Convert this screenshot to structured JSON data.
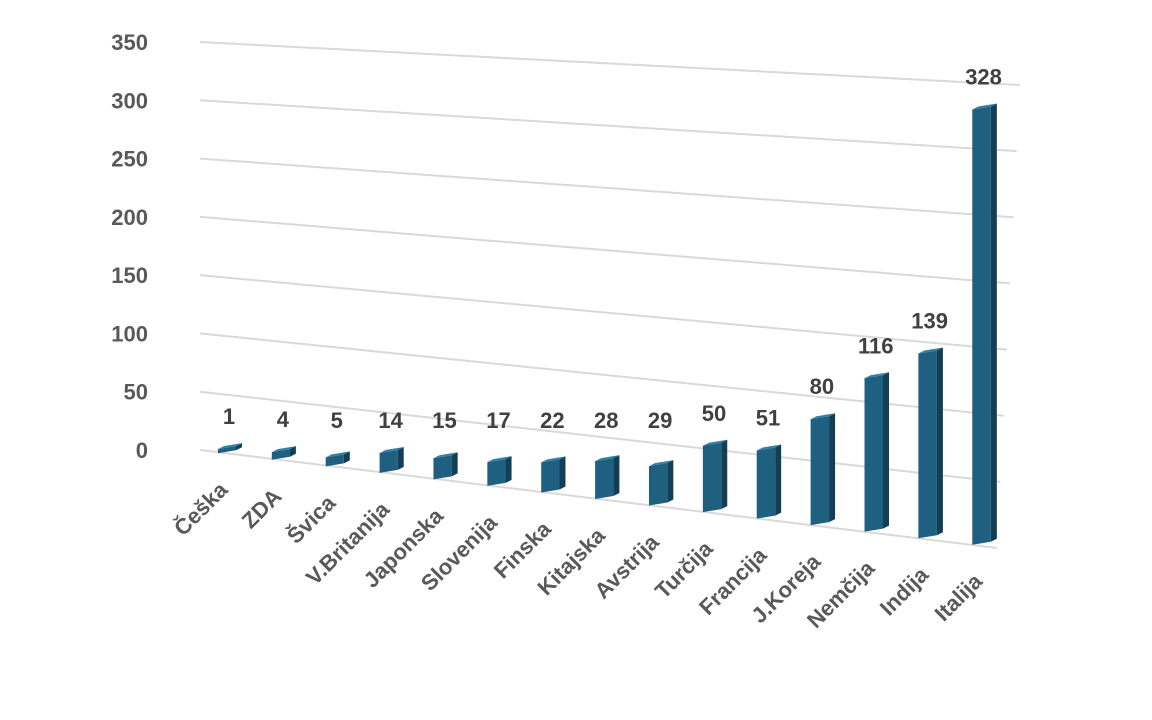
{
  "chart_data": {
    "type": "bar",
    "title": "",
    "xlabel": "",
    "ylabel": "",
    "categories": [
      "Češka",
      "ZDA",
      "Švica",
      "V.Britanija",
      "Japonska",
      "Slovenija",
      "Finska",
      "Kitajska",
      "Avstrija",
      "Turčija",
      "Francija",
      "J.Koreja",
      "Nemčija",
      "Indija",
      "Italija"
    ],
    "values": [
      1,
      4,
      5,
      14,
      15,
      17,
      22,
      28,
      29,
      50,
      51,
      80,
      116,
      139,
      328
    ],
    "value_labels": [
      "1",
      "4",
      "5",
      "14",
      "15",
      "17",
      "22",
      "28",
      "29",
      "50",
      "51",
      "80",
      "116",
      "139",
      "328"
    ],
    "ylim": [
      0,
      350
    ],
    "y_ticks": [
      "0",
      "50",
      "100",
      "150",
      "200",
      "250",
      "300",
      "350"
    ],
    "grid": true,
    "legend": "none",
    "style": "3d-perspective",
    "colors": {
      "bar_front": "#1f6080",
      "bar_top": "#2f7ea5",
      "bar_side": "#123f56",
      "grid": "#d9d9d9"
    }
  }
}
